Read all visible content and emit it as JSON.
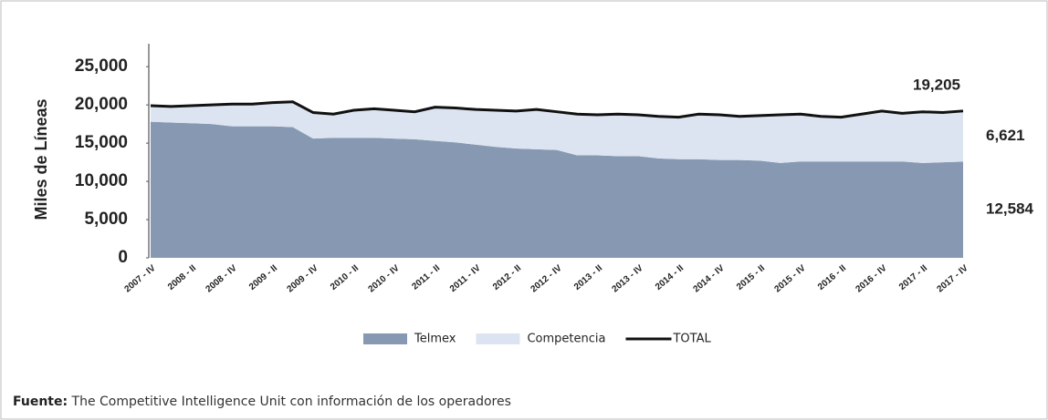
{
  "chart_data": {
    "type": "stacked_area",
    "ylabel": "Miles de Líneas",
    "categories": [
      "2007 - IV",
      null,
      "2008 - II",
      null,
      "2008 - IV",
      null,
      "2009 - II",
      null,
      "2009 - IV",
      null,
      "2010 - II",
      null,
      "2010 - IV",
      null,
      "2011 - II",
      null,
      "2011 - IV",
      null,
      "2012 - II",
      null,
      "2012 - IV",
      null,
      "2013 - II",
      null,
      "2013 - IV",
      null,
      "2014 - II",
      null,
      "2014 - IV",
      null,
      "2015 - II",
      null,
      "2015 - IV",
      null,
      "2016 - II",
      null,
      "2016 - IV",
      null,
      "2017 - II",
      null,
      "2017 - IV"
    ],
    "series": [
      {
        "name": "Telmex",
        "color": "#8799b2",
        "kind": "area",
        "values": [
          17800,
          17700,
          17600,
          17500,
          17200,
          17200,
          17200,
          17100,
          15600,
          15700,
          15700,
          15700,
          15600,
          15500,
          15300,
          15100,
          14800,
          14500,
          14300,
          14200,
          14100,
          13400,
          13400,
          13300,
          13300,
          13000,
          12900,
          12900,
          12800,
          12800,
          12700,
          12400,
          12600,
          12600,
          12600,
          12600,
          12600,
          12600,
          12400,
          12500,
          12584
        ],
        "value_labels": [
          null,
          null,
          null,
          null,
          null,
          null,
          null,
          null,
          null,
          null,
          null,
          null,
          null,
          null,
          null,
          null,
          null,
          null,
          null,
          null,
          null,
          null,
          null,
          null,
          null,
          null,
          null,
          null,
          null,
          null,
          null,
          null,
          null,
          null,
          null,
          null,
          null,
          null,
          null,
          null,
          "12,584"
        ]
      },
      {
        "name": "Competencia",
        "color": "#dde4f1",
        "kind": "area",
        "values": [
          2100,
          2100,
          2300,
          2500,
          2900,
          2900,
          3100,
          3300,
          3400,
          3100,
          3600,
          3800,
          3700,
          3600,
          4400,
          4500,
          4600,
          4800,
          4900,
          5200,
          5000,
          5400,
          5300,
          5500,
          5400,
          5500,
          5500,
          5900,
          5900,
          5700,
          5900,
          6300,
          6200,
          5900,
          5800,
          6200,
          6600,
          6300,
          6700,
          6500,
          6621
        ],
        "value_labels": [
          null,
          null,
          null,
          null,
          null,
          null,
          null,
          null,
          null,
          null,
          null,
          null,
          null,
          null,
          null,
          null,
          null,
          null,
          null,
          null,
          null,
          null,
          null,
          null,
          null,
          null,
          null,
          null,
          null,
          null,
          null,
          null,
          null,
          null,
          null,
          null,
          null,
          null,
          null,
          null,
          "6,621"
        ]
      },
      {
        "name": "TOTAL",
        "color": "#111111",
        "kind": "line",
        "values": [
          19900,
          19800,
          19900,
          20000,
          20100,
          20100,
          20300,
          20400,
          19000,
          18800,
          19300,
          19500,
          19300,
          19100,
          19700,
          19600,
          19400,
          19300,
          19200,
          19400,
          19100,
          18800,
          18700,
          18800,
          18700,
          18500,
          18400,
          18800,
          18700,
          18500,
          18600,
          18700,
          18800,
          18500,
          18400,
          18800,
          19200,
          18900,
          19100,
          19000,
          19205
        ],
        "value_labels": [
          null,
          null,
          null,
          null,
          null,
          null,
          null,
          null,
          null,
          null,
          null,
          null,
          null,
          null,
          null,
          null,
          null,
          null,
          null,
          null,
          null,
          null,
          null,
          null,
          null,
          null,
          null,
          null,
          null,
          null,
          null,
          null,
          null,
          null,
          null,
          null,
          null,
          null,
          null,
          null,
          "19,205"
        ]
      }
    ],
    "ylim": [
      0,
      28000
    ],
    "yticks": [
      0,
      {
        "value": 5000,
        "label": "5,000"
      },
      {
        "value": 10000,
        "label": "10,000"
      },
      {
        "value": 15000,
        "label": "15,000"
      },
      {
        "value": 20000,
        "label": "20,000"
      },
      {
        "value": 25000,
        "label": "25,000"
      }
    ],
    "legend": "bottom",
    "source_label": "Fuente:",
    "source": "The Competitive Intelligence Unit con información de los operadores"
  }
}
